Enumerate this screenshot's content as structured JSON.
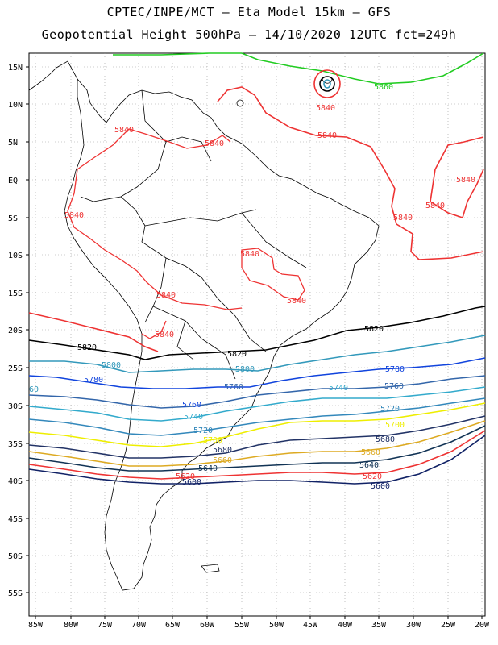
{
  "title_line1": "CPTEC/INPE/MCT –  Eta Model 15km – GFS",
  "title_line2": "Geopotential Height 500hPa – 14/10/2020 12UTC fct=249h",
  "lat_ticks": [
    "15N",
    "10N",
    "5N",
    "EQ",
    "5S",
    "10S",
    "15S",
    "20S",
    "25S",
    "30S",
    "35S",
    "40S",
    "45S",
    "50S",
    "55S"
  ],
  "lon_ticks": [
    "85W",
    "80W",
    "75W",
    "70W",
    "65W",
    "60W",
    "55W",
    "50W",
    "45W",
    "40W",
    "35W",
    "30W",
    "25W",
    "20W"
  ],
  "contour_labels": [
    {
      "text": "5860",
      "color": "#22cc22"
    },
    {
      "text": "5840",
      "color": "#ee3333"
    },
    {
      "text": "5840",
      "color": "#ee3333"
    },
    {
      "text": "5840",
      "color": "#ee3333"
    },
    {
      "text": "5840",
      "color": "#ee3333"
    },
    {
      "text": "5840",
      "color": "#ee3333"
    },
    {
      "text": "5840",
      "color": "#ee3333"
    },
    {
      "text": "5840",
      "color": "#ee3333"
    },
    {
      "text": "5840",
      "color": "#ee3333"
    },
    {
      "text": "5840",
      "color": "#ee3333"
    },
    {
      "text": "5840",
      "color": "#ee3333"
    },
    {
      "text": "5840",
      "color": "#ee3333"
    },
    {
      "text": "5840",
      "color": "#ee3333"
    },
    {
      "text": "5820",
      "color": "#000000"
    },
    {
      "text": "5820",
      "color": "#000000"
    },
    {
      "text": "5820",
      "color": "#000000"
    },
    {
      "text": "5800",
      "color": "#3399bb"
    },
    {
      "text": "5800",
      "color": "#3399bb"
    },
    {
      "text": "5780",
      "color": "#1144dd"
    },
    {
      "text": "5780",
      "color": "#1144dd"
    },
    {
      "text": "5760",
      "color": "#3366aa"
    },
    {
      "text": "5760",
      "color": "#3366aa"
    },
    {
      "text": "5760",
      "color": "#1144dd"
    },
    {
      "text": "5740",
      "color": "#33aacc"
    },
    {
      "text": "5740",
      "color": "#33aacc"
    },
    {
      "text": "5720",
      "color": "#3388bb"
    },
    {
      "text": "5720",
      "color": "#3388bb"
    },
    {
      "text": "5700",
      "color": "#eeee00"
    },
    {
      "text": "5700",
      "color": "#eeee00"
    },
    {
      "text": "5680",
      "color": "#223366"
    },
    {
      "text": "5680",
      "color": "#223366"
    },
    {
      "text": "5660",
      "color": "#ddaa22"
    },
    {
      "text": "5660",
      "color": "#ddaa22"
    },
    {
      "text": "5640",
      "color": "#113355"
    },
    {
      "text": "5640",
      "color": "#113355"
    },
    {
      "text": "5620",
      "color": "#ee3333"
    },
    {
      "text": "5620",
      "color": "#ee3333"
    },
    {
      "text": "5600",
      "color": "#112266"
    },
    {
      "text": "5600",
      "color": "#112266"
    },
    {
      "text": "60",
      "color": "#3399bb"
    }
  ]
}
